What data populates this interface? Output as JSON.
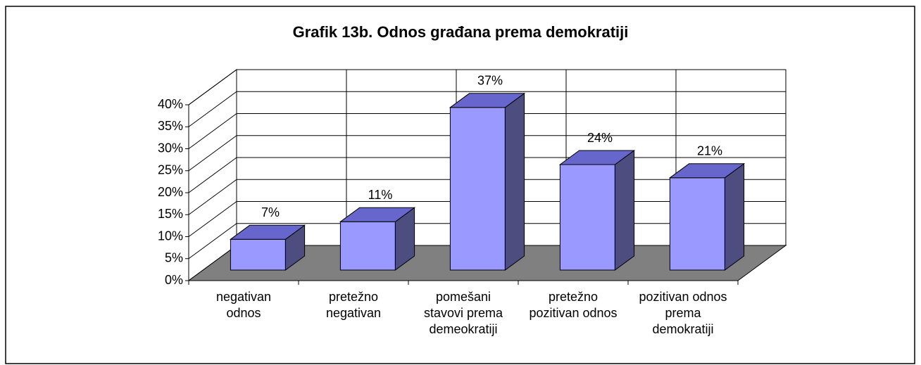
{
  "chart_data": {
    "type": "bar3d",
    "title": "Grafik 13b. Odnos građana prema demokratiji",
    "categories": [
      [
        "negativan",
        "odnos"
      ],
      [
        "pretežno",
        "negativan"
      ],
      [
        "pomešani",
        "stavovi prema",
        "demeokratiji"
      ],
      [
        "pretežno",
        "pozitivan odnos"
      ],
      [
        "pozitivan odnos",
        "prema",
        "demokratiji"
      ]
    ],
    "values": [
      7,
      11,
      37,
      24,
      21
    ],
    "value_labels": [
      "7%",
      "11%",
      "37%",
      "24%",
      "21%"
    ],
    "colors": {
      "front": "#9999ff",
      "top": "#6666cc",
      "side": "#4d4d80",
      "floor": "#808080"
    },
    "ylim": [
      0,
      40
    ],
    "yticks": [
      {
        "value": 0,
        "label": "0%"
      },
      {
        "value": 5,
        "label": "5%"
      },
      {
        "value": 10,
        "label": "10%"
      },
      {
        "value": 15,
        "label": "15%"
      },
      {
        "value": 20,
        "label": "20%"
      },
      {
        "value": 25,
        "label": "25%"
      },
      {
        "value": 30,
        "label": "30%"
      },
      {
        "value": 35,
        "label": "35%"
      },
      {
        "value": 40,
        "label": "40%"
      }
    ],
    "grid": true
  }
}
